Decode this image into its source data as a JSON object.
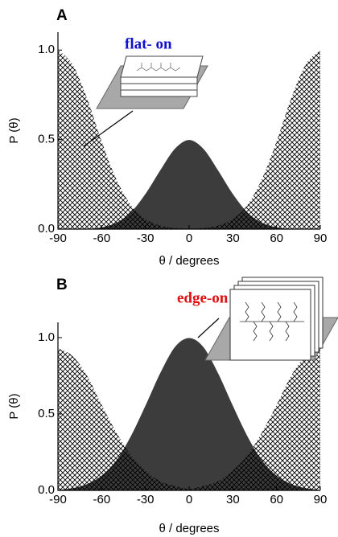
{
  "chart_data": [
    {
      "type": "area",
      "title": "A",
      "xlabel": "θ / degrees",
      "ylabel": "P (θ)",
      "annotation": "flat- on",
      "annotation_color": "#1010d0",
      "x": [
        -90,
        -80,
        -70,
        -60,
        -50,
        -40,
        -30,
        -20,
        -10,
        0,
        10,
        20,
        30,
        40,
        50,
        60,
        70,
        80,
        90
      ],
      "series": [
        {
          "color": "#3c3c3c",
          "fill": "solid",
          "values": [
            0,
            0,
            0.003,
            0.012,
            0.038,
            0.096,
            0.2,
            0.33,
            0.45,
            0.5,
            0.45,
            0.33,
            0.2,
            0.096,
            0.038,
            0.012,
            0.003,
            0,
            0
          ]
        },
        {
          "color": "#000000",
          "fill": "hatch",
          "values": [
            1.0,
            0.92,
            0.73,
            0.49,
            0.28,
            0.135,
            0.056,
            0.02,
            0.006,
            0.002,
            0.006,
            0.02,
            0.056,
            0.135,
            0.28,
            0.49,
            0.73,
            0.92,
            1.0
          ]
        }
      ],
      "xlim": [
        -90,
        90
      ],
      "xticks": [
        -90,
        -60,
        -30,
        0,
        30,
        60,
        90
      ],
      "ylim": [
        0,
        1.1
      ],
      "yticks": [
        {
          "value": 0,
          "label": "0.0"
        },
        0.5,
        {
          "value": 1,
          "label": "1.0"
        }
      ]
    },
    {
      "type": "area",
      "title": "B",
      "xlabel": "θ / degrees",
      "ylabel": "P (θ)",
      "annotation": "edge-on",
      "annotation_color": "#e01010",
      "x": [
        -90,
        -80,
        -70,
        -60,
        -50,
        -40,
        -30,
        -20,
        -10,
        0,
        10,
        20,
        30,
        40,
        50,
        60,
        70,
        80,
        90
      ],
      "series": [
        {
          "color": "#3c3c3c",
          "fill": "solid",
          "values": [
            0.006,
            0.017,
            0.044,
            0.1,
            0.2,
            0.36,
            0.56,
            0.77,
            0.94,
            1.0,
            0.94,
            0.77,
            0.56,
            0.36,
            0.2,
            0.1,
            0.044,
            0.017,
            0.006
          ]
        },
        {
          "color": "#000000",
          "fill": "hatch",
          "values": [
            0.93,
            0.88,
            0.75,
            0.56,
            0.38,
            0.23,
            0.13,
            0.06,
            0.03,
            0.01,
            0.03,
            0.06,
            0.13,
            0.23,
            0.38,
            0.56,
            0.75,
            0.88,
            0.93
          ]
        }
      ],
      "xlim": [
        -90,
        90
      ],
      "xticks": [
        -90,
        -60,
        -30,
        0,
        30,
        60,
        90
      ],
      "ylim": [
        0,
        1.1
      ],
      "yticks": [
        {
          "value": 0,
          "label": "0.0"
        },
        0.5,
        {
          "value": 1,
          "label": "1.0"
        }
      ]
    }
  ]
}
